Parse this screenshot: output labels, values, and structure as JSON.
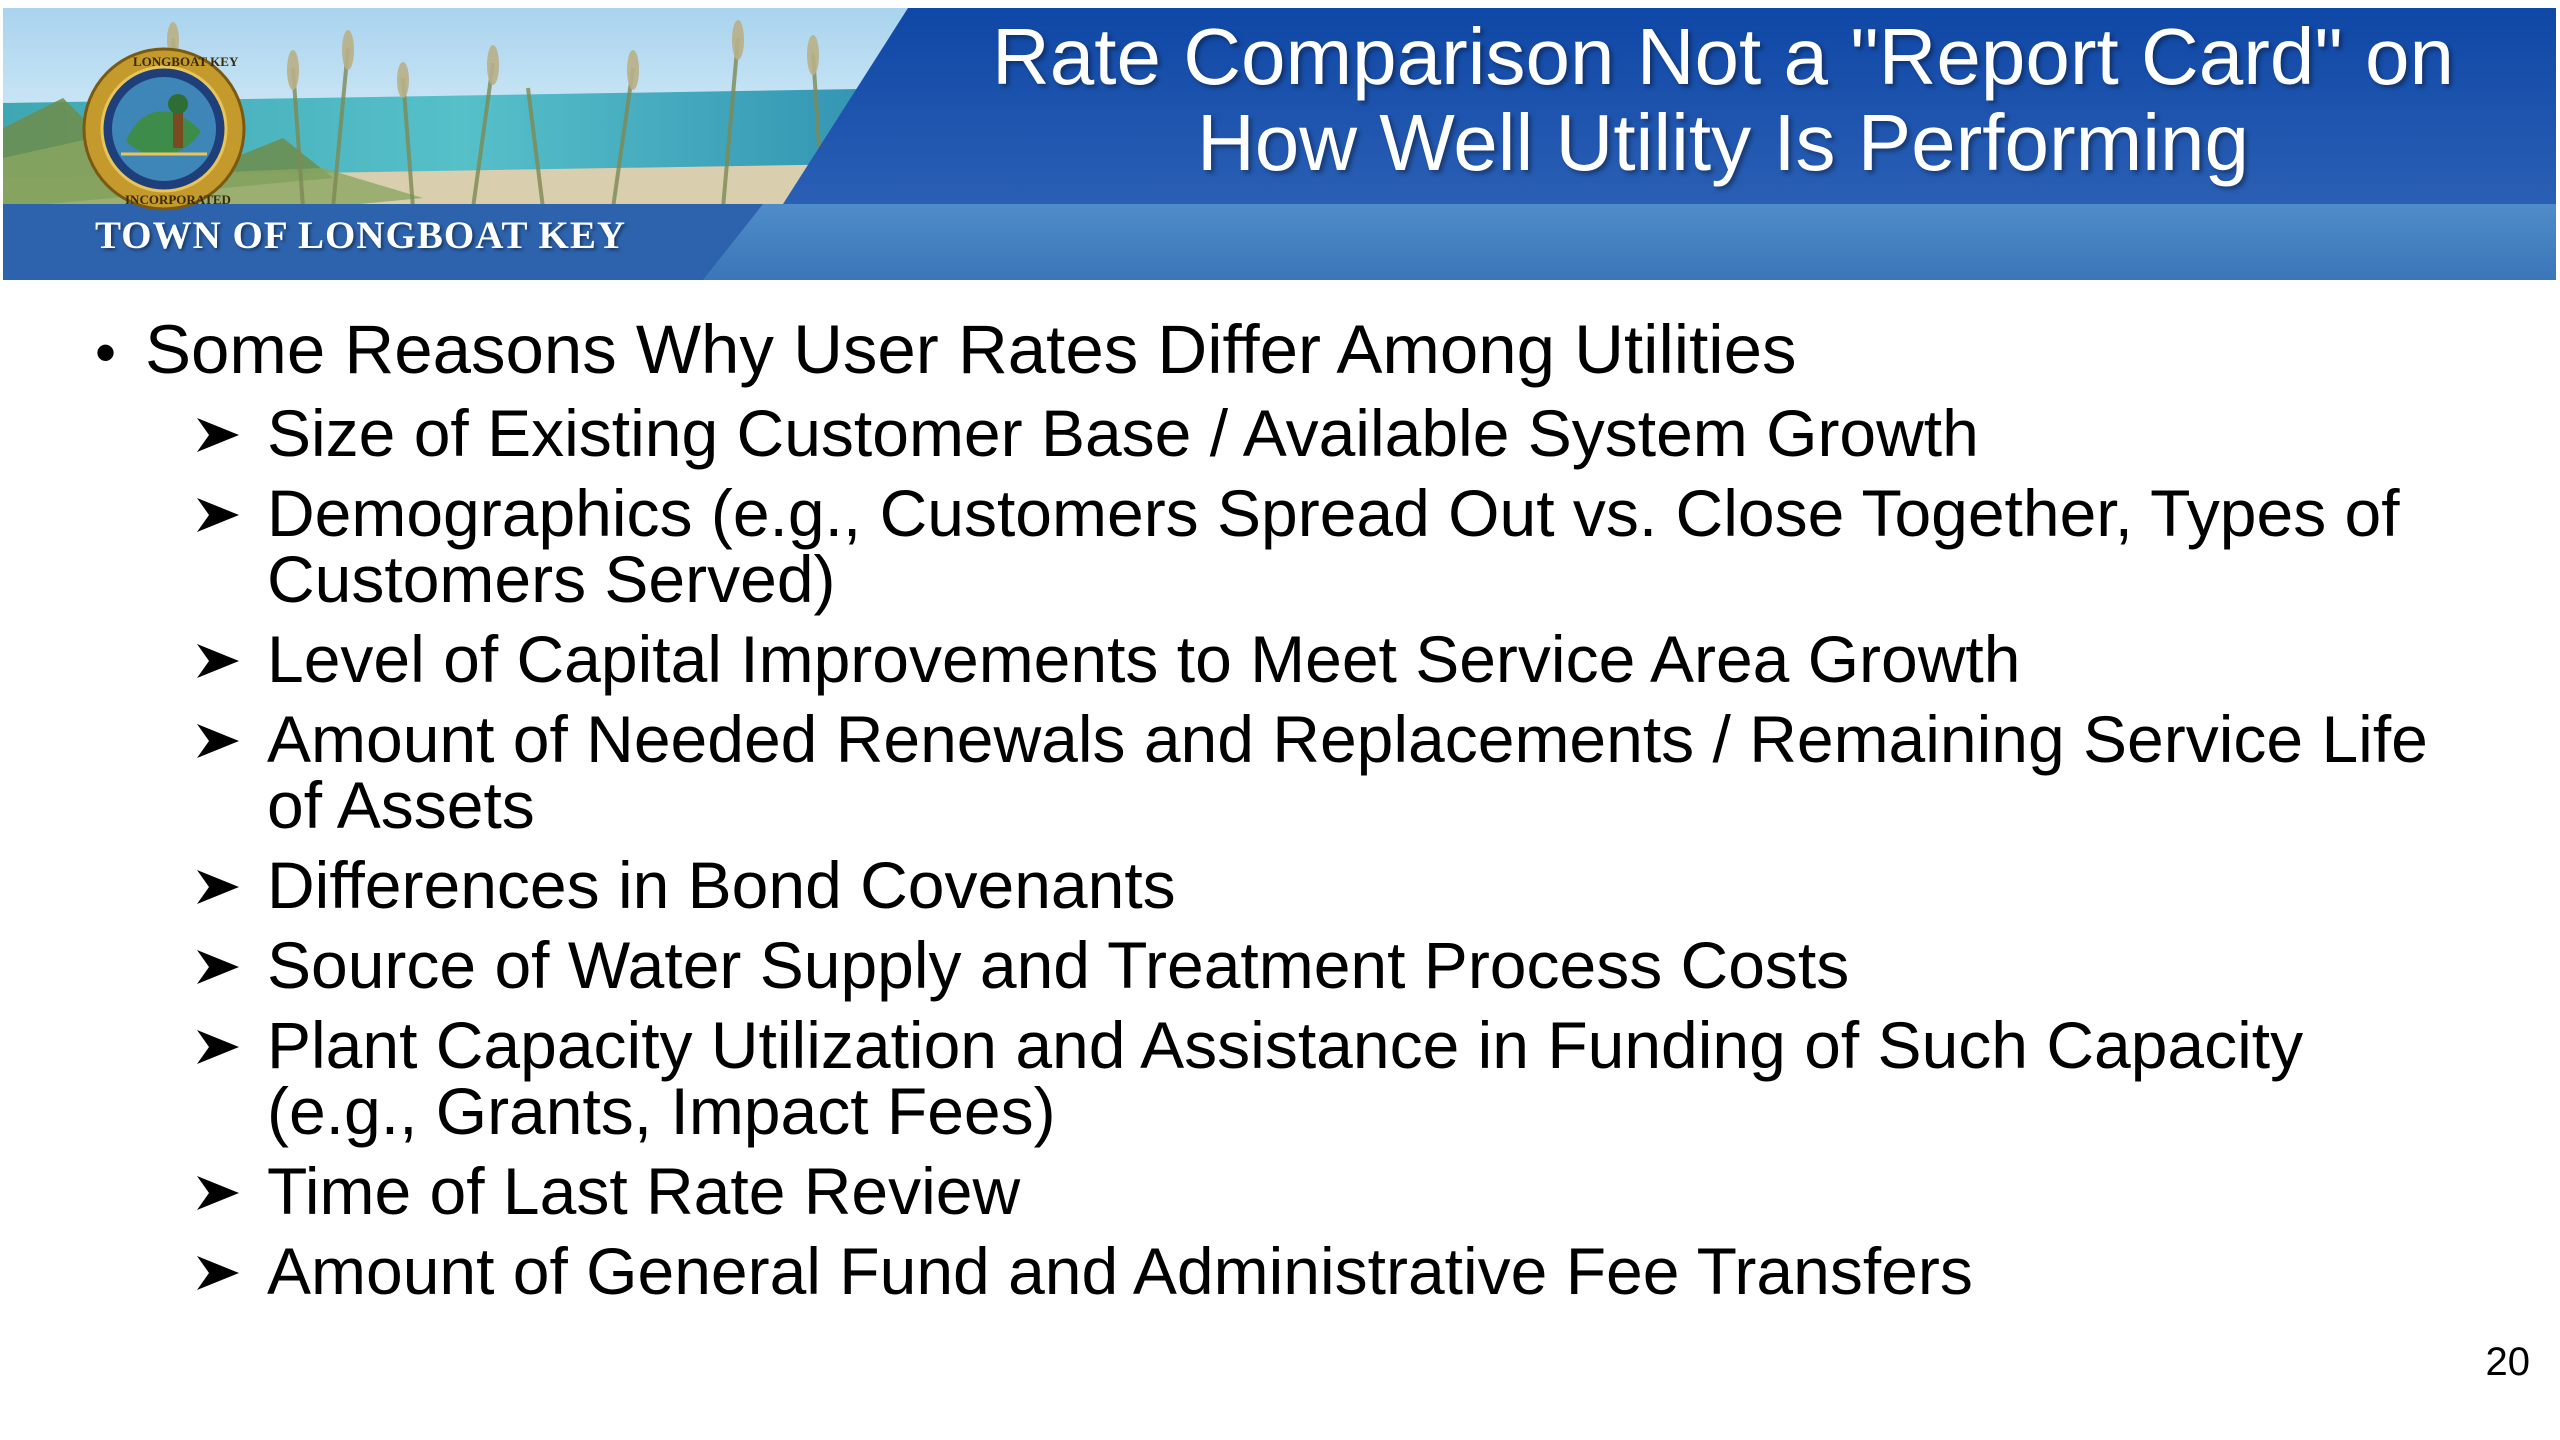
{
  "header": {
    "title_line1": "Rate Comparison Not a \"Report Card\" on",
    "title_line2": "How Well Utility Is Performing",
    "town_name": "TOWN OF LONGBOAT KEY",
    "seal_icon": "town-seal-icon",
    "seal_text": "LONGBOAT KEY INCORPORATED",
    "colors": {
      "banner_blue": "#1d4fa3",
      "banner_light_blue": "#4a86c6",
      "title_text": "#ffffff"
    }
  },
  "body": {
    "main_bullet": "Some Reasons Why User Rates Differ Among Utilities",
    "sub_bullets": [
      "Size of Existing Customer Base / Available System Growth",
      "Demographics (e.g., Customers Spread Out vs. Close Together, Types of",
      "Customers Served)",
      "Level of Capital Improvements to Meet Service Area Growth",
      "Amount of Needed Renewals and Replacements / Remaining Service Life",
      "of Assets",
      "Differences in Bond Covenants",
      "Source of Water Supply and Treatment Process Costs",
      "Plant Capacity Utilization and Assistance in Funding of Such Capacity",
      "(e.g., Grants, Impact Fees)",
      "Time of Last Rate Review",
      "Amount of General Fund and Administrative Fee Transfers"
    ]
  },
  "footer": {
    "page_number": "20"
  }
}
